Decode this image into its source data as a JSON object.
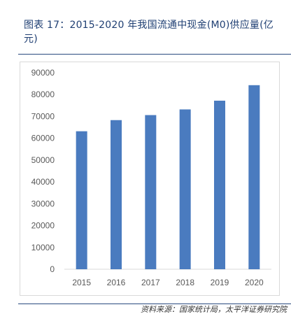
{
  "figure": {
    "title": "图表 17：2015-2020 年我国流通中现金(M0)供应量(亿元)",
    "source": "资料来源：国家统计局，太平洋证券研究院"
  },
  "colors": {
    "bar": "#4a7bbf",
    "title": "#1f3f73",
    "rule": "#2a4a80",
    "gridline": "#d9d9d9",
    "axis_text": "#595959"
  },
  "chart_data": {
    "type": "bar",
    "categories": [
      "2015",
      "2016",
      "2017",
      "2018",
      "2019",
      "2020"
    ],
    "values": [
      63200,
      68300,
      70600,
      73200,
      77200,
      84300
    ],
    "title": "",
    "xlabel": "",
    "ylabel": "",
    "ylim": [
      0,
      90000
    ],
    "yticks": [
      "0",
      "10000",
      "20000",
      "30000",
      "40000",
      "50000",
      "60000",
      "70000",
      "80000",
      "90000"
    ],
    "grid": false,
    "legend": "none"
  }
}
